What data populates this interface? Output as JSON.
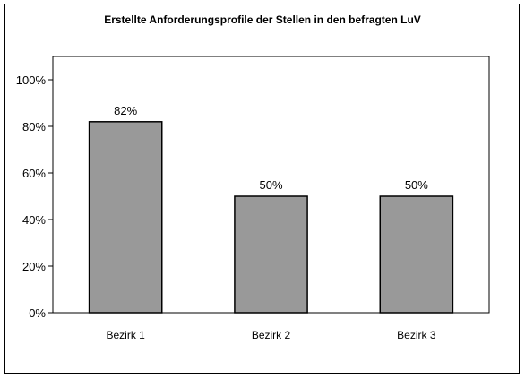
{
  "chart_data": {
    "type": "bar",
    "title": "Erstellte Anforderungsprofile der Stellen in den befragten LuV",
    "categories": [
      "Bezirk 1",
      "Bezirk 2",
      "Bezirk 3"
    ],
    "values": [
      82,
      50,
      50
    ],
    "data_labels": [
      "82%",
      "50%",
      "50%"
    ],
    "xlabel": "",
    "ylabel": "",
    "ylim": [
      0,
      100
    ],
    "yticks": [
      0,
      20,
      40,
      60,
      80,
      100
    ],
    "ytick_labels": [
      "0%",
      "20%",
      "40%",
      "60%",
      "80%",
      "100%"
    ],
    "grid": false,
    "legend": "none",
    "colors": {
      "bar_fill": "#999999",
      "bar_stroke": "#000000",
      "plot_bg": "#ffffff"
    }
  }
}
